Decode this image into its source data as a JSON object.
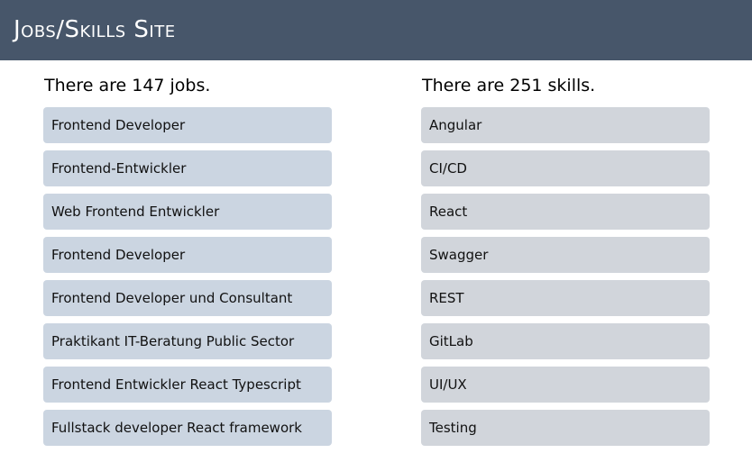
{
  "header": {
    "title": "Jobs/Skills Site"
  },
  "jobs": {
    "count_text": "There are 147 jobs.",
    "items": [
      "Frontend Developer",
      "Frontend-Entwickler",
      "Web Frontend Entwickler",
      "Frontend Developer",
      "Frontend Developer und Consultant",
      "Praktikant IT-Beratung Public Sector",
      "Frontend Entwickler React Typescript",
      "Fullstack developer React framework"
    ]
  },
  "skills": {
    "count_text": "There are 251 skills.",
    "items": [
      "Angular",
      "CI/CD",
      "React",
      "Swagger",
      "REST",
      "GitLab",
      "UI/UX",
      "Testing"
    ]
  },
  "colors": {
    "header_bg": "#47566a",
    "job_item_bg": "#cbd5e1",
    "skill_item_bg": "#d1d5db"
  }
}
